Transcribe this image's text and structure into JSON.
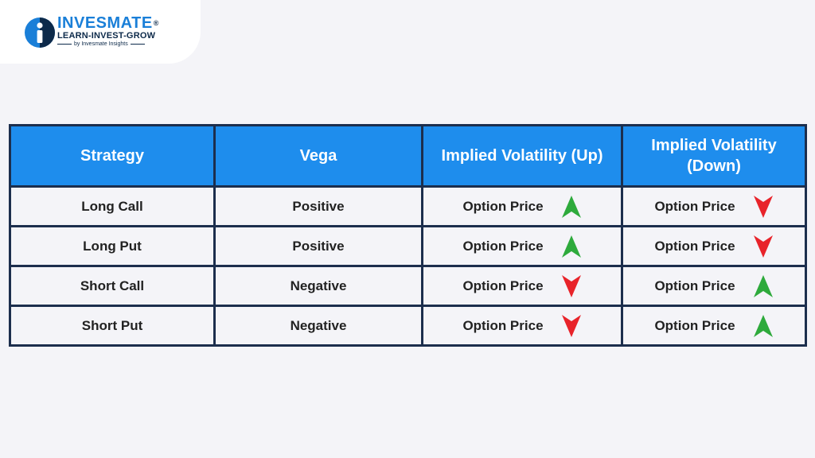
{
  "brand": {
    "name": "INVESMATE",
    "registered_mark": "®",
    "tagline": "LEARN-INVEST-GROW",
    "sub": "by Invesmate Insights",
    "colors": {
      "primary": "#1a7fd8",
      "dark": "#0d2a4a"
    }
  },
  "table": {
    "headers": [
      "Strategy",
      "Vega",
      "Implied Volatility (Up)",
      "Implied Volatility (Down)"
    ],
    "rows": [
      {
        "strategy": "Long Call",
        "vega": "Positive",
        "iv_up": {
          "label": "Option Price",
          "direction": "up",
          "icon": "green-up-arrow-icon"
        },
        "iv_down": {
          "label": "Option Price",
          "direction": "down",
          "icon": "red-down-arrow-icon"
        }
      },
      {
        "strategy": "Long Put",
        "vega": "Positive",
        "iv_up": {
          "label": "Option Price",
          "direction": "up",
          "icon": "green-up-arrow-icon"
        },
        "iv_down": {
          "label": "Option Price",
          "direction": "down",
          "icon": "red-down-arrow-icon"
        }
      },
      {
        "strategy": "Short Call",
        "vega": "Negative",
        "iv_up": {
          "label": "Option Price",
          "direction": "down",
          "icon": "red-down-arrow-icon"
        },
        "iv_down": {
          "label": "Option Price",
          "direction": "up",
          "icon": "green-up-arrow-icon"
        }
      },
      {
        "strategy": "Short Put",
        "vega": "Negative",
        "iv_up": {
          "label": "Option Price",
          "direction": "down",
          "icon": "red-down-arrow-icon"
        },
        "iv_down": {
          "label": "Option Price",
          "direction": "up",
          "icon": "green-up-arrow-icon"
        }
      }
    ],
    "colors": {
      "header_bg": "#1e8ded",
      "border": "#1c2e4d",
      "arrow_up": "#2eaa3c",
      "arrow_down": "#e8232a"
    }
  }
}
